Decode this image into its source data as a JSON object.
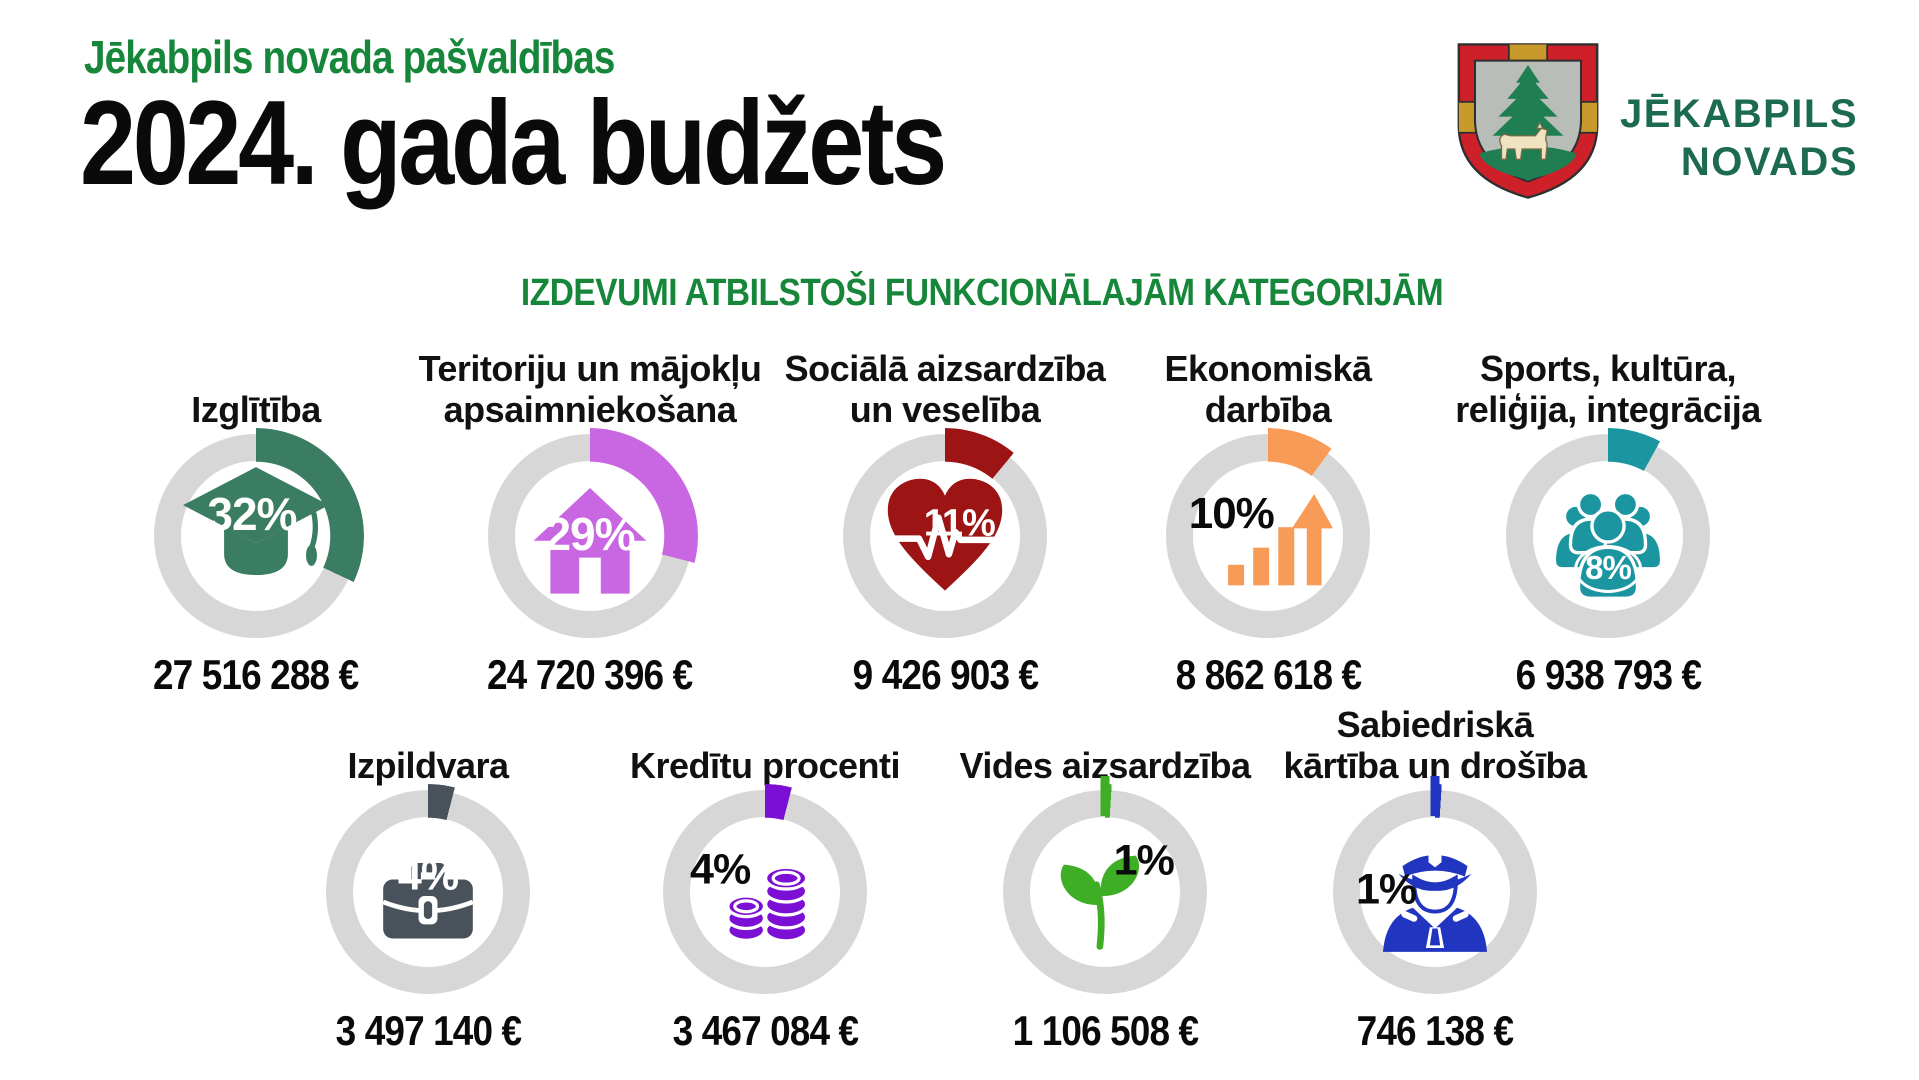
{
  "header": {
    "subtitle": "Jēkabpils novada pašvaldības",
    "title": "2024. gada budžets",
    "section_title": "IZDEVUMI ATBILSTOŠI FUNKCIONĀLAJĀM KATEGORIJĀM"
  },
  "logo": {
    "line1": "JĒKABPILS",
    "line2": "NOVADS",
    "colors": {
      "red": "#ce2028",
      "gold": "#c8992b",
      "shield_gray": "#b9bdb8",
      "green": "#1f7e52",
      "lynx": "#efe3c2",
      "wordmark_green": "#1d6b4e"
    }
  },
  "chart_data": {
    "type": "pie",
    "subtype": "donut-grid",
    "title": "IZDEVUMI ATBILSTOŠI FUNKCIONĀLAJĀM KATEGORIJĀM",
    "unit": "EUR",
    "track_color": "#d7d7d7",
    "accent_green": "#16873a",
    "items": [
      {
        "label": "Izglītība",
        "label_lines": [
          "Izglītība"
        ],
        "percent": 32,
        "amount": "27 516 288 €",
        "value_eur": 27516288,
        "color": "#3a7d62",
        "icon": "graduation-cap",
        "pct_color": "white"
      },
      {
        "label": "Teritoriju un mājokļu apsaimniekošana",
        "label_lines": [
          "Teritoriju un mājokļu",
          "apsaimniekošana"
        ],
        "percent": 29,
        "amount": "24 720 396 €",
        "value_eur": 24720396,
        "color": "#c966e2",
        "icon": "house",
        "pct_color": "white"
      },
      {
        "label": "Sociālā aizsardzība un veselība",
        "label_lines": [
          "Sociālā aizsardzība",
          "un veselība"
        ],
        "percent": 11,
        "amount": "9 426 903 €",
        "value_eur": 9426903,
        "color": "#9c1414",
        "icon": "heart-pulse",
        "pct_color": "white"
      },
      {
        "label": "Ekonomiskā darbība",
        "label_lines": [
          "Ekonomiskā",
          "darbība"
        ],
        "percent": 10,
        "amount": "8 862 618 €",
        "value_eur": 8862618,
        "color": "#f89b57",
        "icon": "growth-chart",
        "pct_color": "black"
      },
      {
        "label": "Sports, kultūra, reliģija, integrācija",
        "label_lines": [
          "Sports, kultūra,",
          "reliģija, integrācija"
        ],
        "percent": 8,
        "amount": "6 938 793 €",
        "value_eur": 6938793,
        "color": "#1b96a0",
        "icon": "people-group",
        "pct_color": "white"
      },
      {
        "label": "Izpildvara",
        "label_lines": [
          "Izpildvara"
        ],
        "percent": 4,
        "amount": "3 497 140 €",
        "value_eur": 3497140,
        "color": "#49525b",
        "icon": "briefcase",
        "pct_color": "white"
      },
      {
        "label": "Kredītu procenti",
        "label_lines": [
          "Kredītu procenti"
        ],
        "percent": 4,
        "amount": "3 467 084 €",
        "value_eur": 3467084,
        "color": "#7b10d4",
        "icon": "coins",
        "pct_color": "black"
      },
      {
        "label": "Vides aizsardzība",
        "label_lines": [
          "Vides aizsardzība"
        ],
        "percent": 1,
        "amount": "1 106 508 €",
        "value_eur": 1106508,
        "color": "#3fae27",
        "icon": "plant",
        "pct_color": "black"
      },
      {
        "label": "Sabiedriskā kārtība un drošība",
        "label_lines": [
          "Sabiedriskā",
          "kārtība un drošība"
        ],
        "percent": 1,
        "amount": "746 138 €",
        "value_eur": 746138,
        "color": "#2135c0",
        "icon": "police-officer",
        "pct_color": "black"
      }
    ]
  }
}
